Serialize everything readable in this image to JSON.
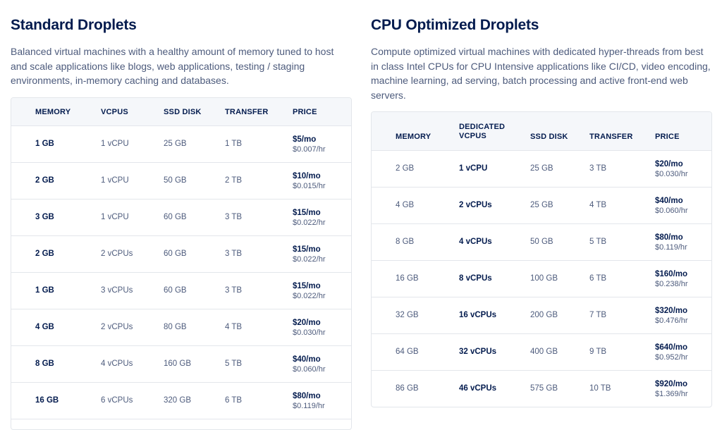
{
  "standard": {
    "title": "Standard Droplets",
    "description": "Balanced virtual machines with a healthy amount of memory tuned to host and scale applications like blogs, web applications, testing / staging environments, in-memory caching and databases.",
    "headers": {
      "memory": "MEMORY",
      "vcpus": "VCPUS",
      "disk": "SSD DISK",
      "transfer": "TRANSFER",
      "price": "PRICE"
    },
    "rows": [
      {
        "memory": "1 GB",
        "vcpus": "1 vCPU",
        "disk": "25 GB",
        "transfer": "1 TB",
        "monthly": "$5/mo",
        "hourly": "$0.007/hr"
      },
      {
        "memory": "2 GB",
        "vcpus": "1 vCPU",
        "disk": "50 GB",
        "transfer": "2 TB",
        "monthly": "$10/mo",
        "hourly": "$0.015/hr"
      },
      {
        "memory": "3 GB",
        "vcpus": "1 vCPU",
        "disk": "60 GB",
        "transfer": "3 TB",
        "monthly": "$15/mo",
        "hourly": "$0.022/hr"
      },
      {
        "memory": "2 GB",
        "vcpus": "2 vCPUs",
        "disk": "60 GB",
        "transfer": "3 TB",
        "monthly": "$15/mo",
        "hourly": "$0.022/hr"
      },
      {
        "memory": "1 GB",
        "vcpus": "3 vCPUs",
        "disk": "60 GB",
        "transfer": "3 TB",
        "monthly": "$15/mo",
        "hourly": "$0.022/hr"
      },
      {
        "memory": "4 GB",
        "vcpus": "2 vCPUs",
        "disk": "80 GB",
        "transfer": "4 TB",
        "monthly": "$20/mo",
        "hourly": "$0.030/hr"
      },
      {
        "memory": "8 GB",
        "vcpus": "4 vCPUs",
        "disk": "160 GB",
        "transfer": "5 TB",
        "monthly": "$40/mo",
        "hourly": "$0.060/hr"
      },
      {
        "memory": "16 GB",
        "vcpus": "6 vCPUs",
        "disk": "320 GB",
        "transfer": "6 TB",
        "monthly": "$80/mo",
        "hourly": "$0.119/hr"
      }
    ]
  },
  "cpu_optimized": {
    "title": "CPU Optimized Droplets",
    "description": "Compute optimized virtual machines with dedicated hyper-threads from best in class Intel CPUs for CPU Intensive applications like CI/CD, video encoding, machine learning, ad serving, batch processing and active front-end web servers.",
    "headers": {
      "memory": "MEMORY",
      "vcpus_line1": "DEDICATED",
      "vcpus_line2": "VCPUS",
      "disk": "SSD DISK",
      "transfer": "TRANSFER",
      "price": "PRICE"
    },
    "rows": [
      {
        "memory": "2 GB",
        "vcpus": "1 vCPU",
        "disk": "25 GB",
        "transfer": "3 TB",
        "monthly": "$20/mo",
        "hourly": "$0.030/hr"
      },
      {
        "memory": "4 GB",
        "vcpus": "2 vCPUs",
        "disk": "25 GB",
        "transfer": "4 TB",
        "monthly": "$40/mo",
        "hourly": "$0.060/hr"
      },
      {
        "memory": "8 GB",
        "vcpus": "4 vCPUs",
        "disk": "50 GB",
        "transfer": "5 TB",
        "monthly": "$80/mo",
        "hourly": "$0.119/hr"
      },
      {
        "memory": "16 GB",
        "vcpus": "8 vCPUs",
        "disk": "100 GB",
        "transfer": "6 TB",
        "monthly": "$160/mo",
        "hourly": "$0.238/hr"
      },
      {
        "memory": "32 GB",
        "vcpus": "16 vCPUs",
        "disk": "200 GB",
        "transfer": "7 TB",
        "monthly": "$320/mo",
        "hourly": "$0.476/hr"
      },
      {
        "memory": "64 GB",
        "vcpus": "32 vCPUs",
        "disk": "400 GB",
        "transfer": "9 TB",
        "monthly": "$640/mo",
        "hourly": "$0.952/hr"
      },
      {
        "memory": "86 GB",
        "vcpus": "46 vCPUs",
        "disk": "575 GB",
        "transfer": "10 TB",
        "monthly": "$920/mo",
        "hourly": "$1.369/hr"
      }
    ]
  }
}
